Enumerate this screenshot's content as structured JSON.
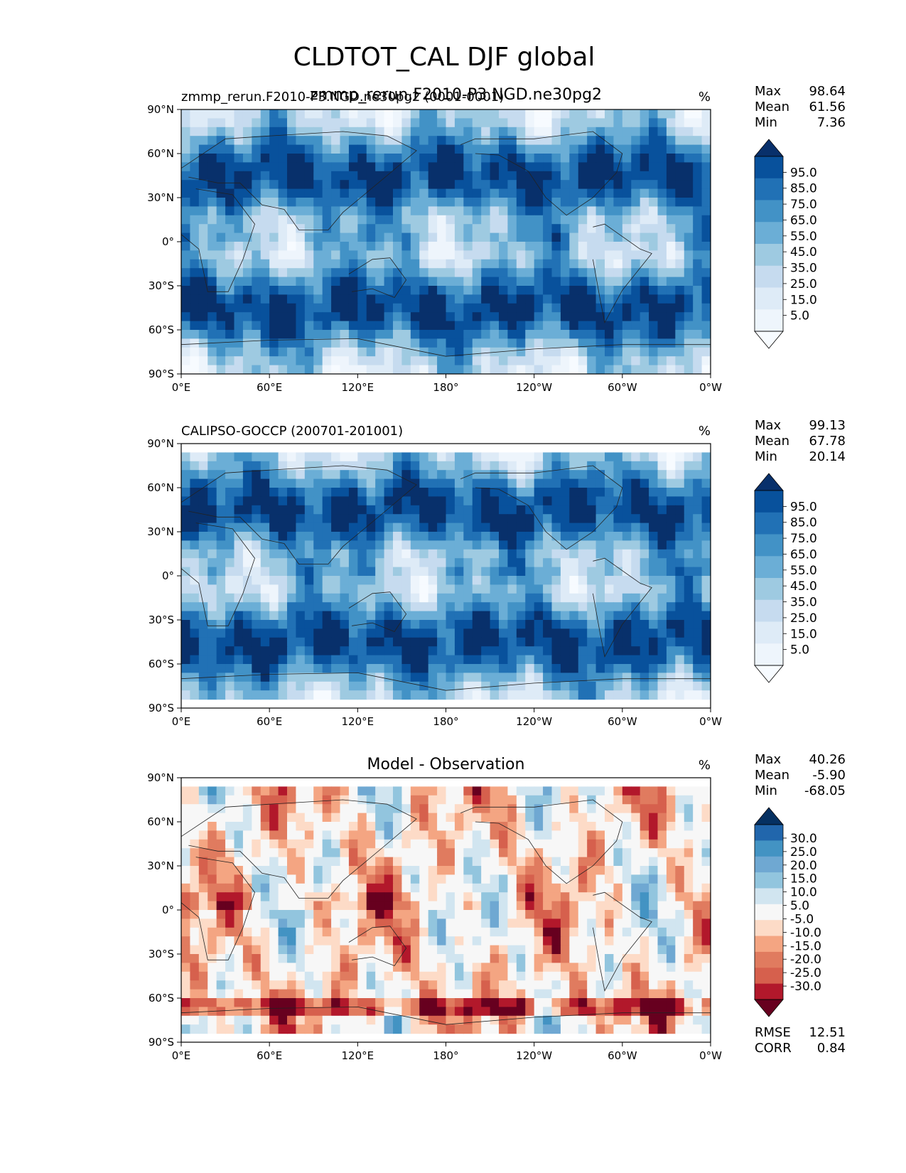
{
  "figure": {
    "title": "CLDTOT_CAL DJF global"
  },
  "axes": {
    "xticks": [
      "0°E",
      "60°E",
      "120°E",
      "180°",
      "120°W",
      "60°W",
      "0°W"
    ],
    "yticks": [
      "90°N",
      "60°N",
      "30°N",
      "0°",
      "30°S",
      "60°S",
      "90°S"
    ]
  },
  "chart_data": [
    {
      "type": "heatmap",
      "title_left": "zmmp_rerun.F2010-P3.NGD.ne30pg2 (0001-0001)",
      "title_center": "zmmp_rerun.F2010-P3.NGD.ne30pg2",
      "units": "%",
      "stats": [
        {
          "label": "Max",
          "value": "98.64"
        },
        {
          "label": "Mean",
          "value": "61.56"
        },
        {
          "label": "Min",
          "value": "7.36"
        }
      ],
      "colorbar_levels": [
        "95.0",
        "85.0",
        "75.0",
        "65.0",
        "55.0",
        "45.0",
        "35.0",
        "25.0",
        "15.0",
        "5.0"
      ],
      "colorbar_colors": [
        "#08306b",
        "#08519c",
        "#2171b5",
        "#4292c6",
        "#6baed6",
        "#9ecae1",
        "#c6dbef",
        "#deebf7",
        "#eef5fc",
        "#f7fbff"
      ],
      "xlim": [
        0,
        360
      ],
      "ylim": [
        -90,
        90
      ]
    },
    {
      "type": "heatmap",
      "title_left": "CALIPSO-GOCCP (200701-201001)",
      "units": "%",
      "stats": [
        {
          "label": "Max",
          "value": "99.13"
        },
        {
          "label": "Mean",
          "value": "67.78"
        },
        {
          "label": "Min",
          "value": "20.14"
        }
      ],
      "colorbar_levels": [
        "95.0",
        "85.0",
        "75.0",
        "65.0",
        "55.0",
        "45.0",
        "35.0",
        "25.0",
        "15.0",
        "5.0"
      ],
      "colorbar_colors": [
        "#08306b",
        "#08519c",
        "#2171b5",
        "#4292c6",
        "#6baed6",
        "#9ecae1",
        "#c6dbef",
        "#deebf7",
        "#eef5fc",
        "#f7fbff"
      ],
      "xlim": [
        0,
        360
      ],
      "ylim": [
        -90,
        90
      ]
    },
    {
      "type": "heatmap",
      "title_center": "Model - Observation",
      "units": "%",
      "stats": [
        {
          "label": "Max",
          "value": "40.26"
        },
        {
          "label": "Mean",
          "value": "-5.90"
        },
        {
          "label": "Min",
          "value": "-68.05"
        }
      ],
      "extra_stats": [
        {
          "label": "RMSE",
          "value": "12.51"
        },
        {
          "label": "CORR",
          "value": "0.84"
        }
      ],
      "colorbar_levels": [
        "30.0",
        "25.0",
        "20.0",
        "15.0",
        "10.0",
        "5.0",
        "-5.0",
        "-10.0",
        "-15.0",
        "-20.0",
        "-25.0",
        "-30.0"
      ],
      "colorbar_colors": [
        "#053061",
        "#2166ac",
        "#4393c3",
        "#6fa8d2",
        "#92c5de",
        "#d1e5f0",
        "#f7f7f7",
        "#fddbc7",
        "#f4a582",
        "#e07b5f",
        "#d6604d",
        "#b2182b",
        "#67001f"
      ],
      "xlim": [
        0,
        360
      ],
      "ylim": [
        -90,
        90
      ]
    }
  ]
}
